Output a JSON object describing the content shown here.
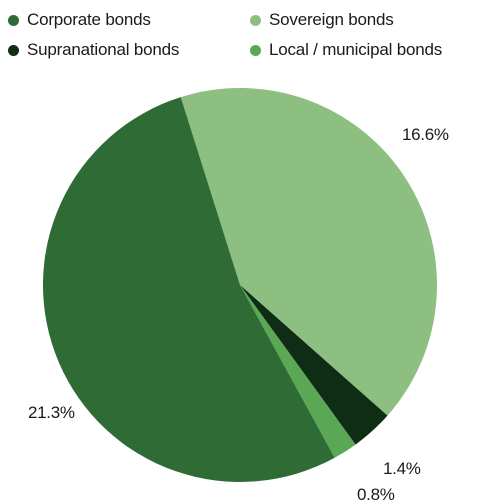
{
  "chart_data": {
    "type": "pie",
    "series": [
      {
        "name": "Corporate bonds",
        "color": "#2f6b35"
      },
      {
        "name": "Sovereign bonds",
        "color": "#8dbf81"
      },
      {
        "name": "Supranational bonds",
        "color": "#0f2c14"
      },
      {
        "name": "Local / municipal bonds",
        "color": "#5aa755"
      }
    ],
    "slices": [
      {
        "name": "Corporate bonds",
        "value": 21.3,
        "label": "21.3%"
      },
      {
        "name": "Sovereign bonds",
        "value": 16.6,
        "label": "16.6%"
      },
      {
        "name": "Supranational bonds",
        "value": 1.4,
        "label": "1.4%"
      },
      {
        "name": "Local / municipal bonds",
        "value": 0.8,
        "label": "0.8%"
      }
    ],
    "legend_position": "top"
  }
}
